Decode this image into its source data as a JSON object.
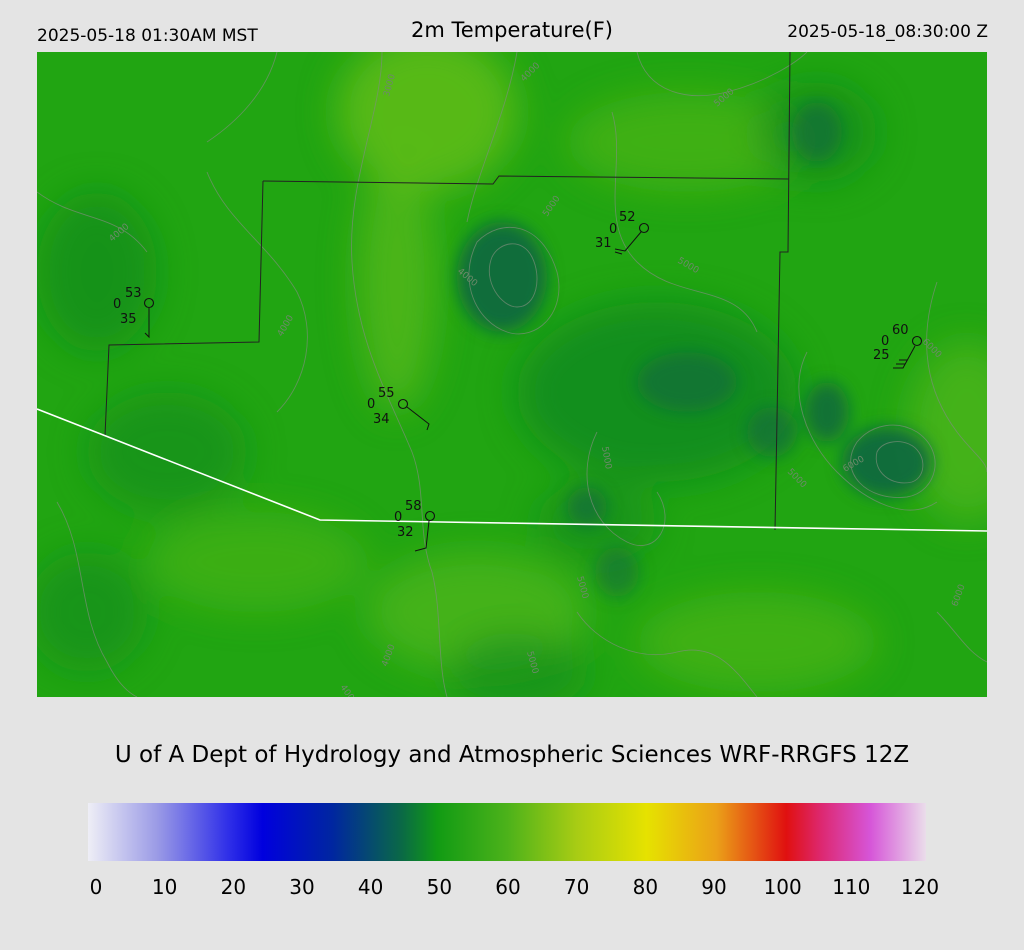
{
  "header": {
    "local_time": "2025-05-18 01:30AM MST",
    "title": "2m Temperature(F)",
    "utc_time": "2025-05-18_08:30:00 Z"
  },
  "credit": "U of A Dept of Hydrology and Atmospheric Sciences WRF-RRGFS 12Z",
  "colorbar": {
    "min": 0,
    "max": 120,
    "ticks": [
      "0",
      "10",
      "20",
      "30",
      "40",
      "50",
      "60",
      "70",
      "80",
      "90",
      "100",
      "110",
      "120"
    ],
    "stops": [
      {
        "value": 0,
        "color": "#eeeef6"
      },
      {
        "value": 10,
        "color": "#9a9ae6"
      },
      {
        "value": 20,
        "color": "#3030e8"
      },
      {
        "value": 25,
        "color": "#0000de"
      },
      {
        "value": 35,
        "color": "#0026a0"
      },
      {
        "value": 45,
        "color": "#0a6a45"
      },
      {
        "value": 50,
        "color": "#119b14"
      },
      {
        "value": 60,
        "color": "#4cb21a"
      },
      {
        "value": 70,
        "color": "#a8cc14"
      },
      {
        "value": 80,
        "color": "#e6e200"
      },
      {
        "value": 90,
        "color": "#eba018"
      },
      {
        "value": 100,
        "color": "#e01010"
      },
      {
        "value": 105,
        "color": "#dd2870"
      },
      {
        "value": 112,
        "color": "#d655d8"
      },
      {
        "value": 120,
        "color": "#eaddea"
      }
    ]
  },
  "map": {
    "colors": {
      "base": "#21a512",
      "warm": "#5cbb1a",
      "cool": "#138a1f",
      "cold": "#0f6640",
      "boundary": "#222222",
      "road": "#ffffff",
      "contour": "#7d8f7b"
    },
    "stations": [
      {
        "temp": "53",
        "gust": "0",
        "dewpoint": "35"
      },
      {
        "temp": "52",
        "gust": "0",
        "dewpoint": "31"
      },
      {
        "temp": "55",
        "gust": "0",
        "dewpoint": "34"
      },
      {
        "temp": "58",
        "gust": "0",
        "dewpoint": "32"
      },
      {
        "temp": "60",
        "gust": "0",
        "dewpoint": "25"
      }
    ],
    "contour_labels": [
      "3000",
      "4000",
      "4000",
      "4000",
      "4000",
      "4000",
      "4000",
      "5000",
      "5000",
      "5000",
      "5000",
      "5000",
      "5000",
      "5000",
      "6000",
      "6000",
      "6000"
    ]
  }
}
